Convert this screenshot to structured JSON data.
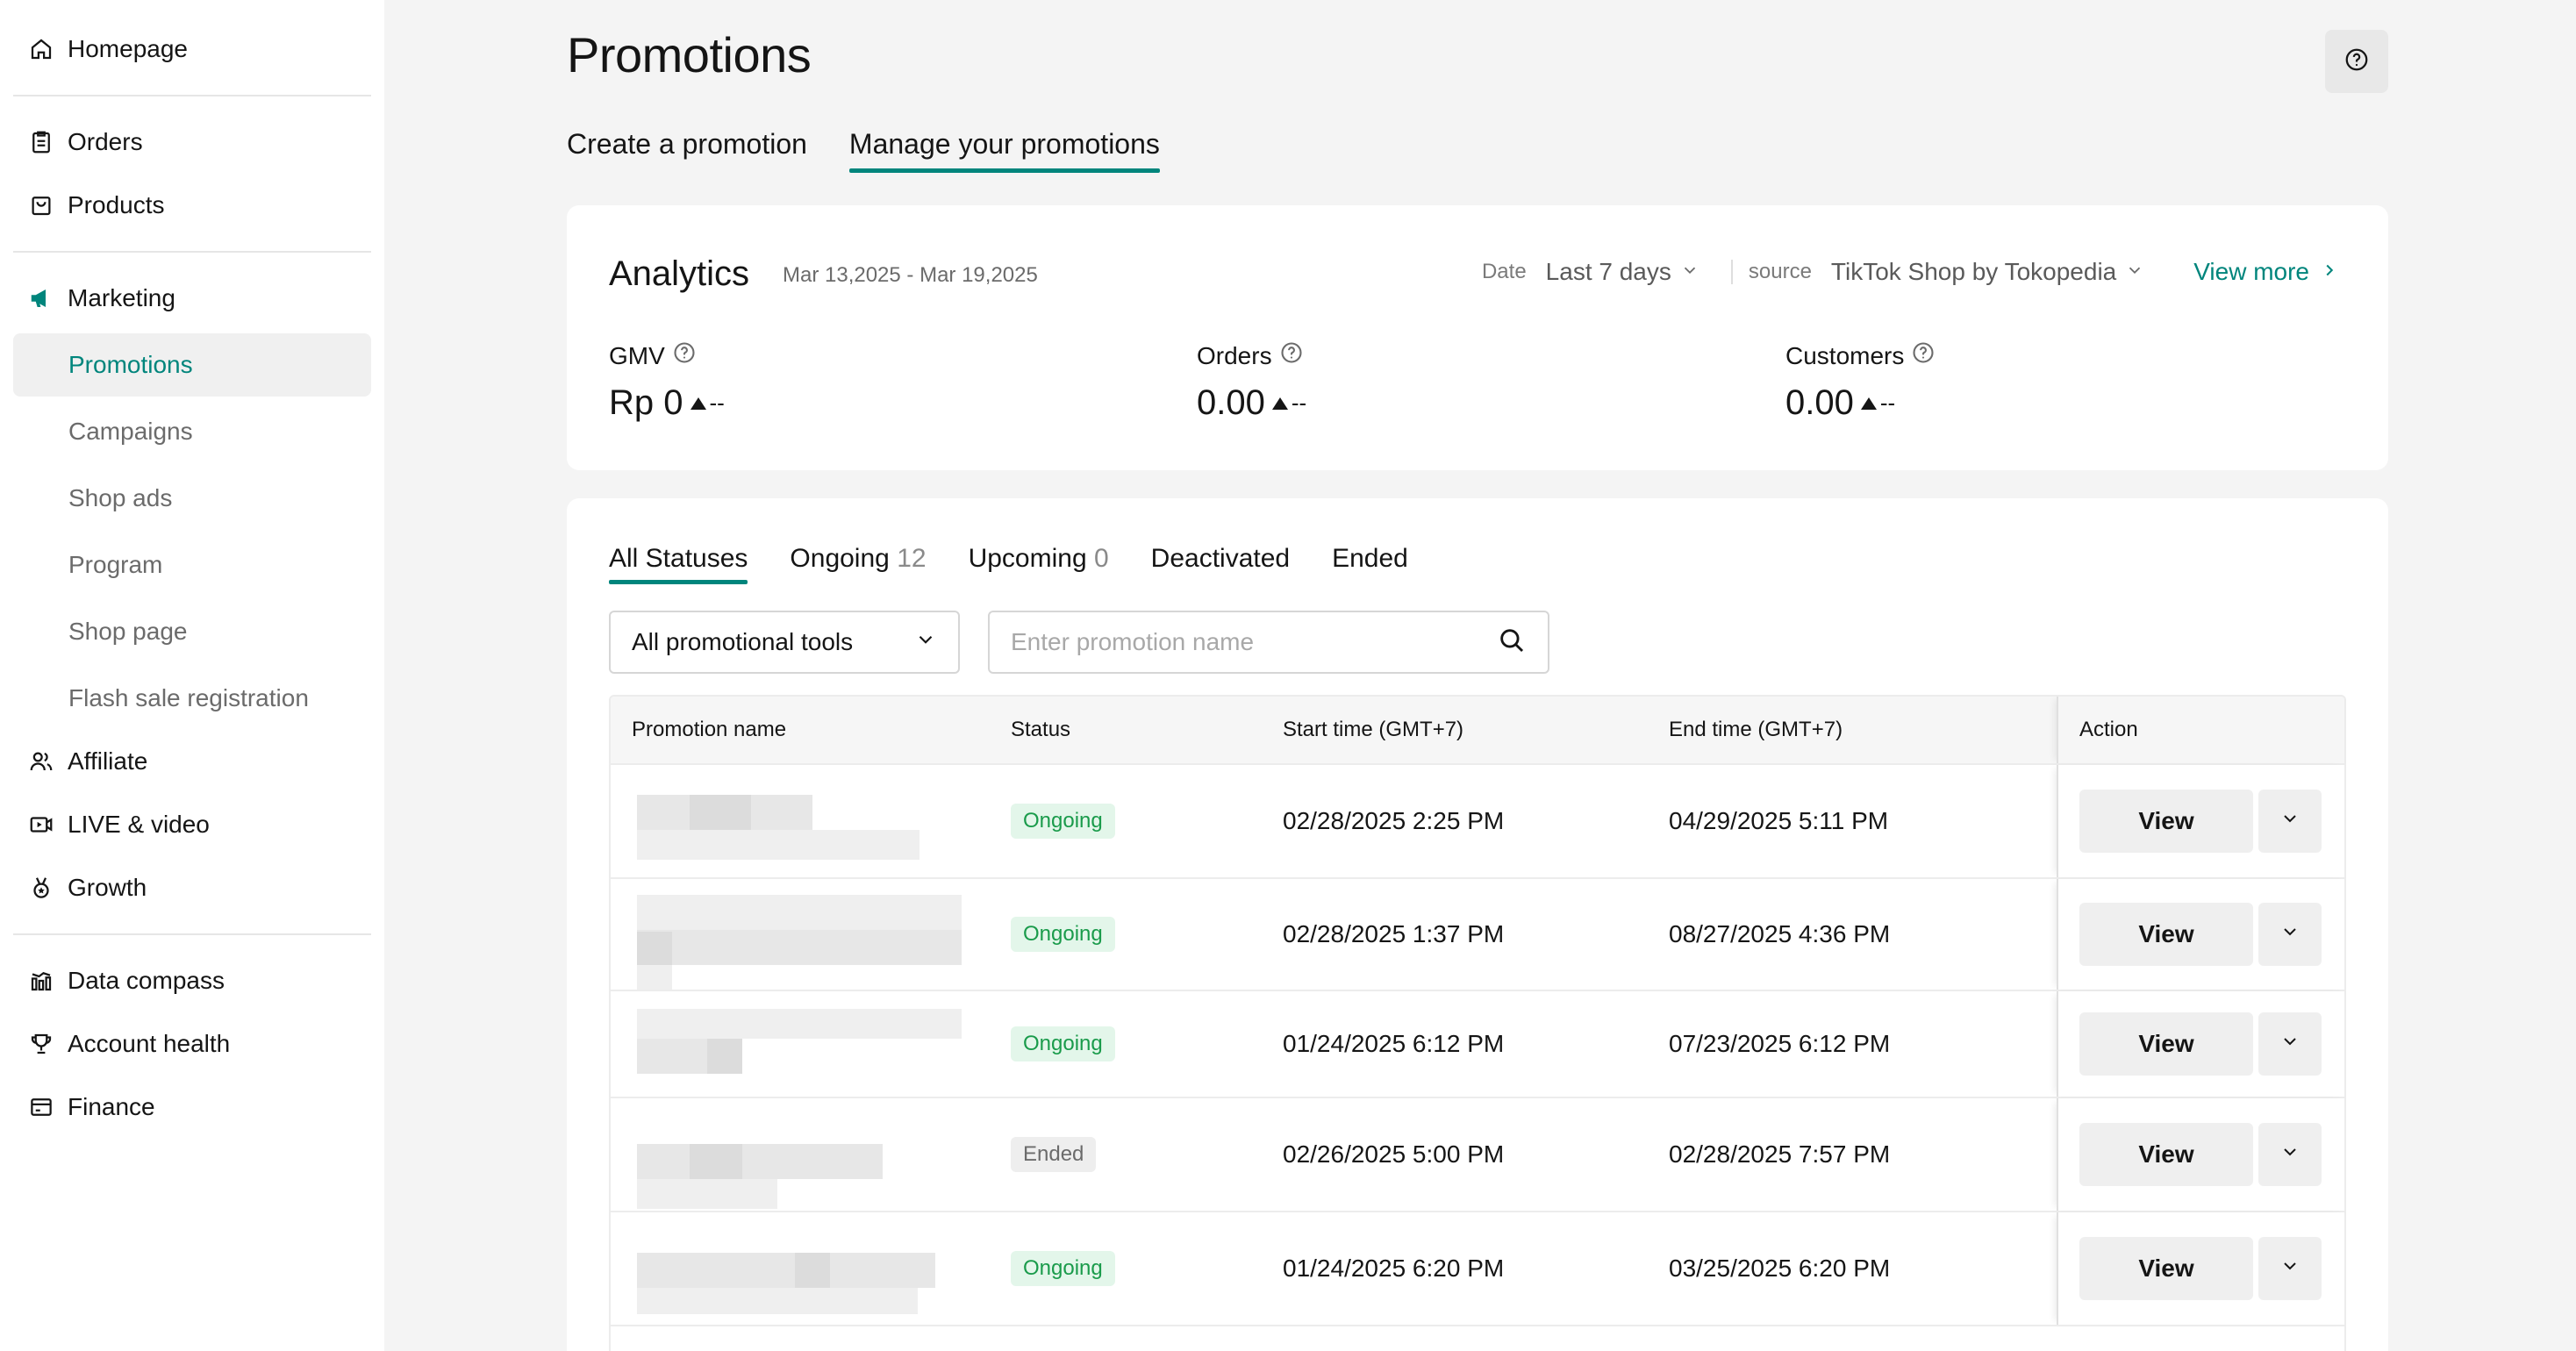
{
  "sidebar": {
    "homepage": "Homepage",
    "orders": "Orders",
    "products": "Products",
    "marketing": "Marketing",
    "marketing_items": [
      "Promotions",
      "Campaigns",
      "Shop ads",
      "Program",
      "Shop page",
      "Flash sale registration"
    ],
    "affiliate": "Affiliate",
    "live_video": "LIVE & video",
    "growth": "Growth",
    "data_compass": "Data compass",
    "account_health": "Account health",
    "finance": "Finance"
  },
  "header": {
    "title": "Promotions",
    "tabs": [
      "Create a promotion",
      "Manage your promotions"
    ],
    "active_tab": "Manage your promotions"
  },
  "analytics": {
    "title": "Analytics",
    "range": "Mar 13,2025 - Mar 19,2025",
    "date_label": "Date",
    "date_value": "Last 7 days",
    "source_label": "source",
    "source_value": "TikTok Shop by Tokopedia",
    "view_more": "View more",
    "metrics": [
      {
        "label": "GMV",
        "value": "Rp 0",
        "delta": "--"
      },
      {
        "label": "Orders",
        "value": "0.00",
        "delta": "--"
      },
      {
        "label": "Customers",
        "value": "0.00",
        "delta": "--"
      }
    ]
  },
  "list": {
    "status_tabs": [
      {
        "label": "All Statuses",
        "count": ""
      },
      {
        "label": "Ongoing",
        "count": "12"
      },
      {
        "label": "Upcoming",
        "count": "0"
      },
      {
        "label": "Deactivated",
        "count": ""
      },
      {
        "label": "Ended",
        "count": ""
      }
    ],
    "tool_select": "All promotional tools",
    "search_placeholder": "Enter promotion name",
    "columns": [
      "Promotion name",
      "Status",
      "Start time",
      "(GMT+7)",
      "End time",
      "(GMT+7)",
      "Action"
    ],
    "rows": [
      {
        "status": "Ongoing",
        "start": "02/28/2025 2:25 PM",
        "end": "04/29/2025 5:11 PM",
        "action": "View"
      },
      {
        "status": "Ongoing",
        "start": "02/28/2025 1:37 PM",
        "end": "08/27/2025 4:36 PM",
        "action": "View"
      },
      {
        "status": "Ongoing",
        "start": "01/24/2025 6:12 PM",
        "end": "07/23/2025 6:12 PM",
        "action": "View"
      },
      {
        "status": "Ended",
        "start": "02/26/2025 5:00 PM",
        "end": "02/28/2025 7:57 PM",
        "action": "View"
      },
      {
        "status": "Ongoing",
        "start": "01/24/2025 6:20 PM",
        "end": "03/25/2025 6:20 PM",
        "action": "View"
      }
    ]
  },
  "colors": {
    "accent": "#00857c",
    "ongoing": "#1a9b4b",
    "ongoing_bg": "#e3f6ea"
  }
}
